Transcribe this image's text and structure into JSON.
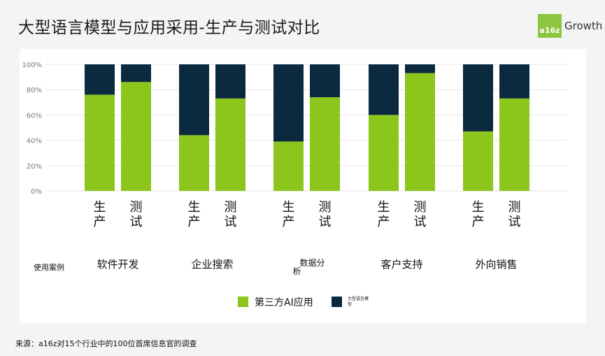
{
  "title": "大型语言模型与应用采用-生产与测试对比",
  "logo": {
    "badge": "a16z",
    "text": "Growth"
  },
  "source": "来源：a16z对15个行业中的100位首席信息官的调查",
  "row_label": "使用案例",
  "colors": {
    "third_party": "#8cc51c",
    "llm": "#0b2a3f"
  },
  "chart_data": {
    "type": "bar",
    "stacked": true,
    "y_ticks": [
      "0%",
      "20%",
      "40%",
      "60%",
      "80%",
      "100%"
    ],
    "ylim": [
      0,
      100
    ],
    "grid": true,
    "legend_position": "bottom",
    "groups": [
      {
        "label": "软件开发",
        "bars": [
          {
            "label": "生产",
            "third_party": 76
          },
          {
            "label": "测试",
            "third_party": 86
          }
        ]
      },
      {
        "label": "企业搜索",
        "bars": [
          {
            "label": "生产",
            "third_party": 44
          },
          {
            "label": "测试",
            "third_party": 73
          }
        ]
      },
      {
        "label": "数据分析",
        "bars": [
          {
            "label": "生产",
            "third_party": 39
          },
          {
            "label": "测试",
            "third_party": 74
          }
        ]
      },
      {
        "label": "客户支持",
        "bars": [
          {
            "label": "生产",
            "third_party": 60
          },
          {
            "label": "测试",
            "third_party": 93
          }
        ]
      },
      {
        "label": "外向销售",
        "bars": [
          {
            "label": "生产",
            "third_party": 47
          },
          {
            "label": "测试",
            "third_party": 73
          }
        ]
      }
    ],
    "series": [
      {
        "name": "第三方AI应用",
        "key": "third_party"
      },
      {
        "name": "大型语言模型",
        "key": "llm"
      }
    ]
  }
}
